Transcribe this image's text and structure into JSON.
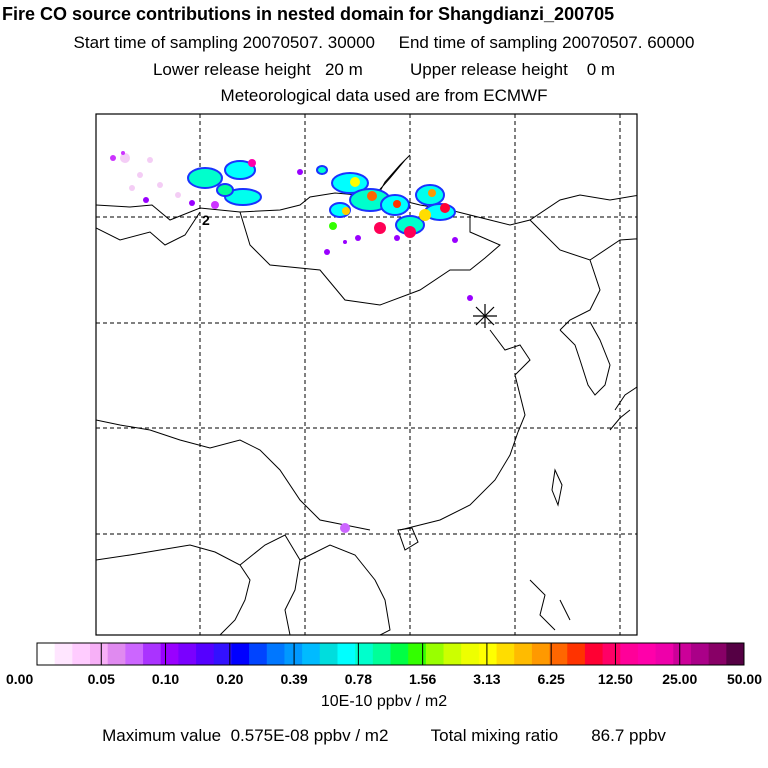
{
  "header": {
    "title": "Fire CO source contributions in nested domain for Shangdianzi_200705",
    "start_label": "Start time of sampling 20070507. 30000",
    "end_label": "End time of sampling 20070507. 60000",
    "lower_label": "Lower release height   20 m",
    "upper_label": "Upper release height    0 m",
    "met_label": "Meteorological data used are from ECMWF"
  },
  "map": {
    "receptor_icon": "asterisk-receptor-marker",
    "contour_label": "2"
  },
  "legend": {
    "colors": [
      "#ffffff",
      "#ffe6ff",
      "#ffccff",
      "#f7b0f7",
      "#e08af0",
      "#cc66ff",
      "#aa33ff",
      "#9900ff",
      "#7a00ff",
      "#5500ff",
      "#3311ff",
      "#0000ff",
      "#0044ff",
      "#0077ff",
      "#0099ff",
      "#00bbff",
      "#00dddd",
      "#00ffff",
      "#00ffcc",
      "#00ff99",
      "#00ff44",
      "#33ff00",
      "#99ff00",
      "#ccff00",
      "#eeff00",
      "#ffff00",
      "#ffdd00",
      "#ffbb00",
      "#ff9900",
      "#ff6600",
      "#ff3300",
      "#ff0033",
      "#ff0066",
      "#ff0099",
      "#ff00aa",
      "#ee00aa",
      "#cc0099",
      "#aa0088",
      "#880066",
      "#550044"
    ],
    "ticks": [
      "0.00",
      "0.05",
      "0.10",
      "0.20",
      "0.39",
      "0.78",
      "1.56",
      "3.13",
      "6.25",
      "12.50",
      "25.00",
      "50.00"
    ],
    "unit": "10E-10 ppbv / m2"
  },
  "footer": {
    "max_label": "Maximum value  0.575E-08 ppbv / m2",
    "total_label": "Total mixing ratio       86.7 ppbv"
  }
}
